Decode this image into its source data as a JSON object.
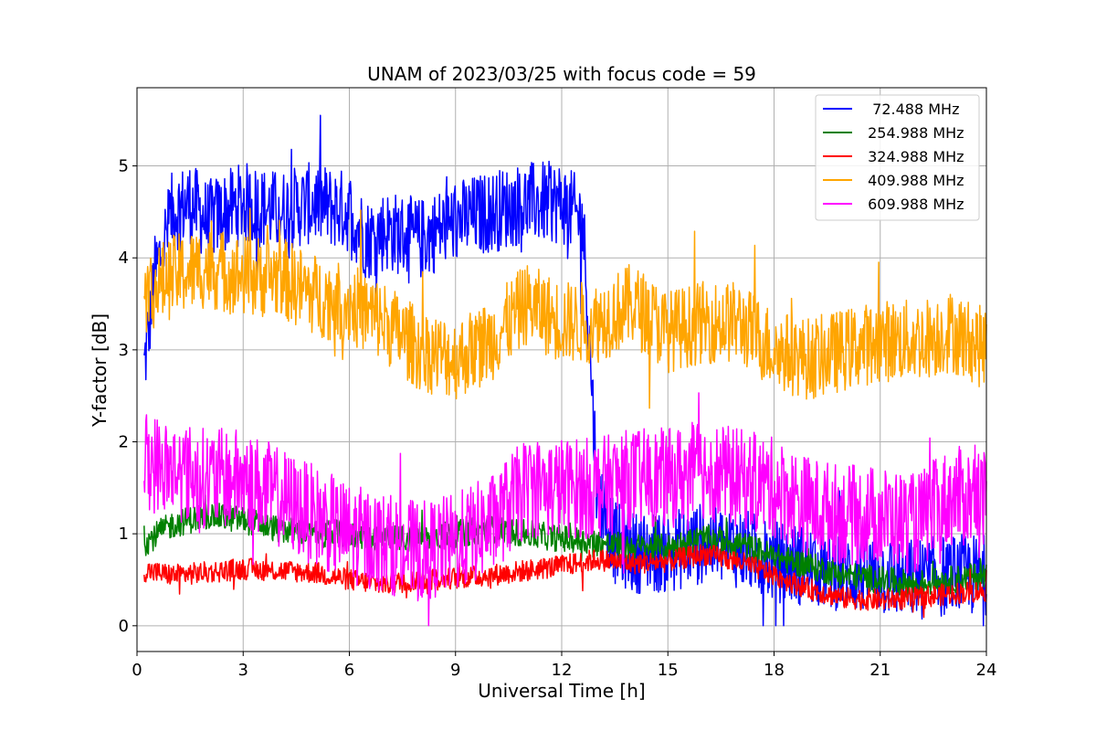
{
  "chart_data": {
    "type": "line",
    "title": "UNAM of 2023/03/25 with focus code = 59",
    "xlabel": "Universal Time [h]",
    "ylabel": "Y-factor [dB]",
    "xlim": [
      0,
      24
    ],
    "ylim": [
      -0.28,
      5.85
    ],
    "xticks": [
      0,
      3,
      6,
      9,
      12,
      15,
      18,
      21,
      24
    ],
    "xtick_labels": [
      "0",
      "3",
      "6",
      "9",
      "12",
      "15",
      "18",
      "21",
      "24"
    ],
    "yticks": [
      0,
      1,
      2,
      3,
      4,
      5
    ],
    "ytick_labels": [
      "0",
      "1",
      "2",
      "3",
      "4",
      "5"
    ],
    "grid": true,
    "legend_position": "top-right",
    "series": [
      {
        "name": "  72.488 MHz",
        "color": "#0000ff",
        "x": [
          0.2,
          0.5,
          1,
          1.5,
          2,
          3,
          4,
          5,
          6,
          6.5,
          7,
          8,
          9,
          10,
          11,
          12,
          12.6,
          12.8,
          13,
          13.5,
          14,
          15,
          16,
          17,
          18,
          19,
          20,
          21,
          22,
          23,
          24
        ],
        "y": [
          2.8,
          3.8,
          4.5,
          4.6,
          4.4,
          4.6,
          4.5,
          4.6,
          4.5,
          4.2,
          4.3,
          4.2,
          4.4,
          4.5,
          4.6,
          4.6,
          4.4,
          3.0,
          1.5,
          0.9,
          0.8,
          0.8,
          0.9,
          0.85,
          0.7,
          0.65,
          0.6,
          0.55,
          0.5,
          0.55,
          0.55
        ],
        "noise": 0.45
      },
      {
        "name": " 254.988 MHz",
        "color": "#008000",
        "x": [
          0.2,
          1,
          2,
          3,
          4,
          5,
          6,
          7,
          8,
          9,
          10,
          11,
          12,
          13,
          14,
          15,
          16,
          17,
          18,
          19,
          20,
          21,
          22,
          23,
          24
        ],
        "y": [
          0.9,
          1.1,
          1.2,
          1.15,
          1.05,
          1.0,
          1.0,
          0.95,
          0.95,
          1.0,
          1.05,
          1.0,
          0.95,
          0.9,
          0.85,
          0.85,
          0.95,
          0.9,
          0.75,
          0.65,
          0.55,
          0.5,
          0.45,
          0.5,
          0.55
        ],
        "noise": 0.15
      },
      {
        "name": " 324.988 MHz",
        "color": "#ff0000",
        "x": [
          0.2,
          1,
          2,
          3,
          4,
          5,
          6,
          7,
          8,
          9,
          10,
          11,
          12,
          13,
          14,
          15,
          16,
          17,
          18,
          19,
          20,
          21,
          22,
          23,
          24
        ],
        "y": [
          0.6,
          0.55,
          0.58,
          0.62,
          0.6,
          0.58,
          0.5,
          0.45,
          0.5,
          0.52,
          0.55,
          0.6,
          0.65,
          0.72,
          0.68,
          0.7,
          0.78,
          0.7,
          0.55,
          0.4,
          0.3,
          0.28,
          0.3,
          0.35,
          0.38
        ],
        "noise": 0.12
      },
      {
        "name": " 409.988 MHz",
        "color": "#ffa500",
        "x": [
          0.2,
          1,
          2,
          3,
          4,
          5,
          6,
          7,
          8,
          9,
          10,
          11,
          12,
          13,
          14,
          15,
          16,
          17,
          18,
          19,
          20,
          21,
          22,
          23,
          24
        ],
        "y": [
          3.6,
          3.8,
          3.9,
          3.8,
          3.8,
          3.6,
          3.5,
          3.3,
          3.0,
          2.9,
          3.1,
          3.5,
          3.3,
          3.3,
          3.5,
          3.2,
          3.3,
          3.3,
          3.0,
          2.9,
          3.0,
          3.1,
          3.1,
          3.2,
          3.0
        ],
        "noise": 0.45
      },
      {
        "name": " 609.988 MHz",
        "color": "#ff00ff",
        "x": [
          0.2,
          1,
          2,
          3,
          4,
          5,
          6,
          7,
          8,
          9,
          10,
          11,
          12,
          13,
          14,
          15,
          16,
          17,
          18,
          19,
          20,
          21,
          22,
          23,
          24
        ],
        "y": [
          1.8,
          1.7,
          1.6,
          1.6,
          1.4,
          1.2,
          1.0,
          0.9,
          0.8,
          0.9,
          1.1,
          1.5,
          1.5,
          1.5,
          1.6,
          1.6,
          1.7,
          1.6,
          1.5,
          1.3,
          1.2,
          1.2,
          1.1,
          1.4,
          1.4
        ],
        "noise": 0.55
      }
    ]
  }
}
